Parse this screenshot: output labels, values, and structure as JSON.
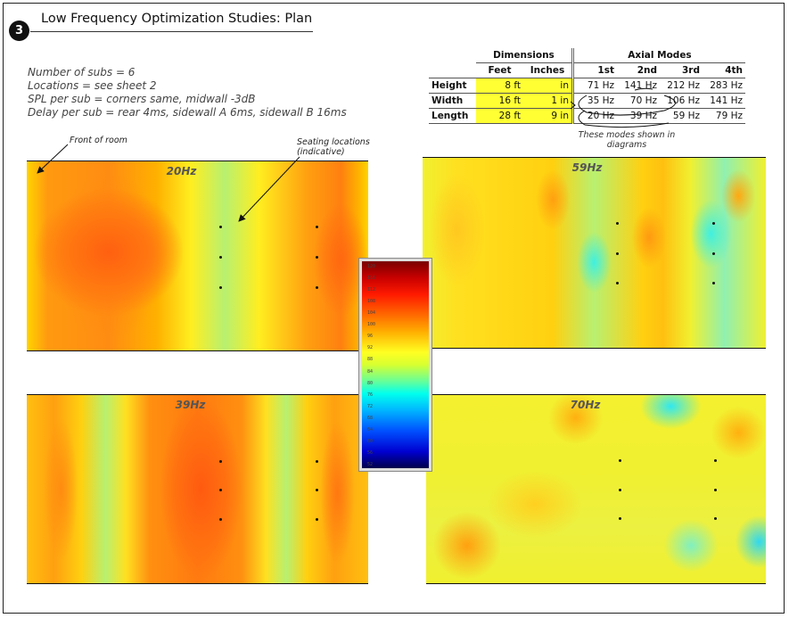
{
  "badge": "3",
  "title": "Low Frequency Optimization Studies: Plan",
  "notes": [
    "Number of subs = 6",
    "Locations = see sheet 2",
    "SPL per sub = corners same, midwall -3dB",
    "Delay per sub = rear 4ms, sidewall A 6ms, sidewall B 16ms"
  ],
  "table": {
    "group_dimensions": "Dimensions",
    "group_modes": "Axial Modes",
    "col_feet": "Feet",
    "col_inches": "Inches",
    "mode_cols": [
      "1st",
      "2nd",
      "3rd",
      "4th"
    ],
    "rows": [
      {
        "label": "Height",
        "feet": "8 ft",
        "inches": "in",
        "modes": [
          "71 Hz",
          "141 Hz",
          "212 Hz",
          "283 Hz"
        ]
      },
      {
        "label": "Width",
        "feet": "16 ft",
        "inches": "1 in",
        "modes": [
          "35 Hz",
          "70 Hz",
          "106 Hz",
          "141 Hz"
        ]
      },
      {
        "label": "Length",
        "feet": "28 ft",
        "inches": "9 in",
        "modes": [
          "20 Hz",
          "39 Hz",
          "59 Hz",
          "79 Hz"
        ]
      }
    ],
    "note": "These modes shown in diagrams"
  },
  "annotations": {
    "front": "Front of room",
    "seating_1": "Seating locations",
    "seating_2": "(indicative)"
  },
  "plots": [
    {
      "label": "20Hz"
    },
    {
      "label": "59Hz"
    },
    {
      "label": "39Hz"
    },
    {
      "label": "70Hz"
    }
  ],
  "scale_ticks": [
    "120",
    "116",
    "112",
    "108",
    "104",
    "100",
    "96",
    "92",
    "88",
    "84",
    "80",
    "76",
    "72",
    "68",
    "64",
    "60",
    "56",
    "52"
  ],
  "colors": {
    "highlight": "#ffff33",
    "spl_high": "#7a0000",
    "spl_low": "#00004a"
  }
}
